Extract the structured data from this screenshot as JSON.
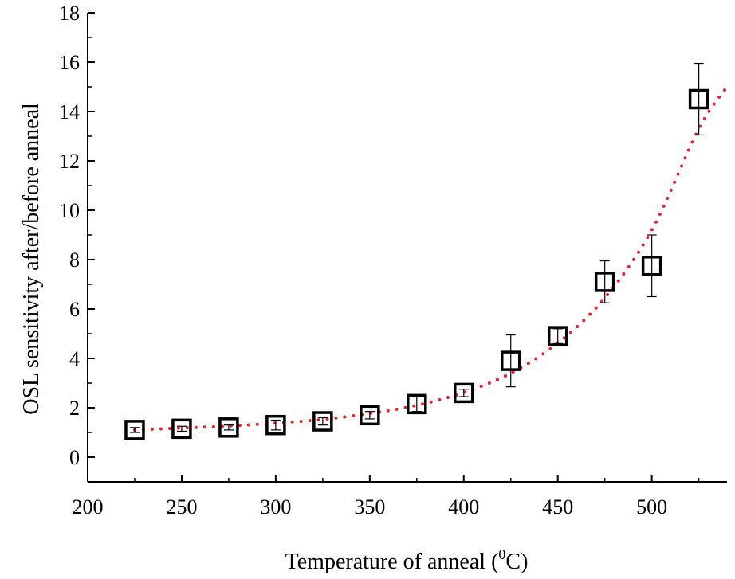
{
  "chart_data": {
    "type": "scatter",
    "xlabel": "Temperature of anneal (",
    "xlabel_sup": "0",
    "xlabel_unit": "C)",
    "ylabel": "OSL sensitivity after/before anneal",
    "xlim": [
      200,
      540
    ],
    "ylim": [
      -1,
      18
    ],
    "x_ticks": [
      200,
      250,
      300,
      350,
      400,
      450,
      500
    ],
    "y_ticks": [
      0,
      2,
      4,
      6,
      8,
      10,
      12,
      14,
      16,
      18
    ],
    "grid": false,
    "legend": "none",
    "series": [
      {
        "marker": "open-square",
        "color": "#000000",
        "x": [
          225,
          250,
          275,
          300,
          325,
          350,
          375,
          400,
          425,
          450,
          475,
          500,
          525
        ],
        "y": [
          1.1,
          1.15,
          1.2,
          1.3,
          1.45,
          1.7,
          2.15,
          2.6,
          3.9,
          4.9,
          7.1,
          7.75,
          14.5
        ],
        "error": [
          0.1,
          0.1,
          0.1,
          0.2,
          0.15,
          0.15,
          0.3,
          0.15,
          1.05,
          0.3,
          0.85,
          1.25,
          1.45
        ]
      }
    ],
    "fit": {
      "style": "dotted",
      "color": "#e8202a",
      "x": [
        225,
        250,
        275,
        300,
        325,
        350,
        375,
        400,
        425,
        450,
        475,
        500,
        525,
        540
      ],
      "y": [
        1.1,
        1.18,
        1.26,
        1.38,
        1.53,
        1.77,
        2.1,
        2.62,
        3.4,
        4.62,
        6.45,
        9.2,
        13.3,
        15.0
      ]
    }
  }
}
